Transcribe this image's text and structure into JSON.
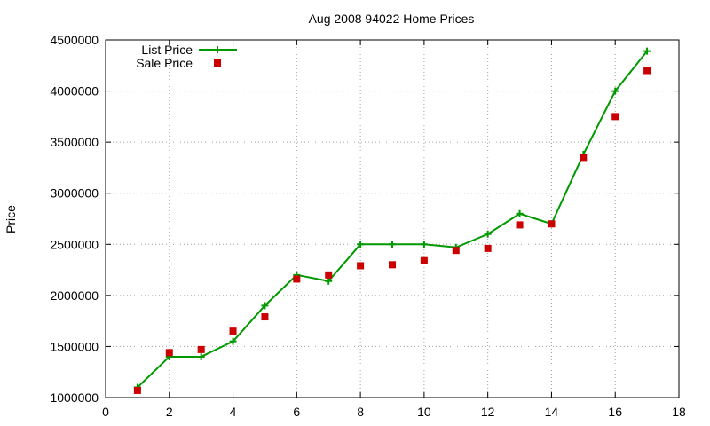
{
  "chart_data": {
    "type": "line",
    "title": "Aug 2008 94022 Home Prices",
    "xlabel": "",
    "ylabel": "Price",
    "xlim": [
      0,
      18
    ],
    "ylim": [
      1000000,
      4500000
    ],
    "x_ticks": [
      "0",
      "2",
      "4",
      "6",
      "8",
      "10",
      "12",
      "14",
      "16",
      "18"
    ],
    "y_ticks": [
      "1000000",
      "1500000",
      "2000000",
      "2500000",
      "3000000",
      "3500000",
      "4000000",
      "4500000"
    ],
    "grid": true,
    "legend_position": "top-left",
    "x": [
      1,
      2,
      3,
      4,
      5,
      6,
      7,
      8,
      9,
      10,
      11,
      12,
      13,
      14,
      15,
      16,
      17
    ],
    "series": [
      {
        "name": "List Price",
        "style": "line-plus",
        "color": "#009900",
        "values": [
          1100000,
          1400000,
          1400000,
          1550000,
          1900000,
          2200000,
          2140000,
          2500000,
          2500000,
          2500000,
          2470000,
          2600000,
          2800000,
          2700000,
          3380000,
          4000000,
          4390000
        ]
      },
      {
        "name": "Sale Price",
        "style": "square-marker",
        "color": "#cc0000",
        "values": [
          1070000,
          1440000,
          1470000,
          1650000,
          1790000,
          2160000,
          2200000,
          2290000,
          2300000,
          2340000,
          2440000,
          2460000,
          2690000,
          2700000,
          3350000,
          3750000,
          4200000
        ]
      }
    ]
  }
}
